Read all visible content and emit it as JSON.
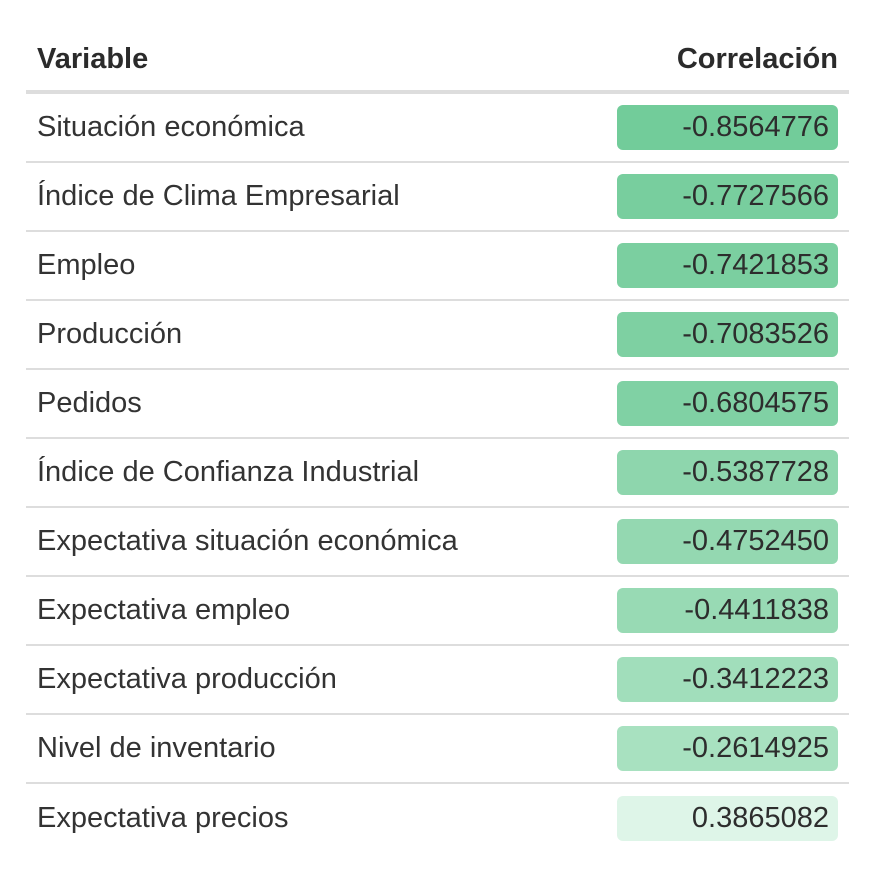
{
  "table": {
    "headers": {
      "variable": "Variable",
      "correlation": "Correlación"
    },
    "rows": [
      {
        "variable": "Situación económica",
        "correlation": "-0.8564776",
        "color": "#72cc9a"
      },
      {
        "variable": "Índice de Clima Empresarial",
        "correlation": "-0.7727566",
        "color": "#78ce9e"
      },
      {
        "variable": "Empleo",
        "correlation": "-0.7421853",
        "color": "#7bcfa0"
      },
      {
        "variable": "Producción",
        "correlation": "-0.7083526",
        "color": "#7ed0a2"
      },
      {
        "variable": "Pedidos",
        "correlation": "-0.6804575",
        "color": "#80d1a4"
      },
      {
        "variable": "Índice de Confianza Industrial",
        "correlation": "-0.5387728",
        "color": "#8ed6ad"
      },
      {
        "variable": "Expectativa situación económica",
        "correlation": "-0.4752450",
        "color": "#94d8b1"
      },
      {
        "variable": "Expectativa empleo",
        "correlation": "-0.4411838",
        "color": "#98dab4"
      },
      {
        "variable": "Expectativa producción",
        "correlation": "-0.3412223",
        "color": "#a1debb"
      },
      {
        "variable": "Nivel de inventario",
        "correlation": "-0.2614925",
        "color": "#a8e1c0"
      },
      {
        "variable": "Expectativa precios",
        "correlation": "0.3865082",
        "color": "#def5e8"
      }
    ]
  }
}
